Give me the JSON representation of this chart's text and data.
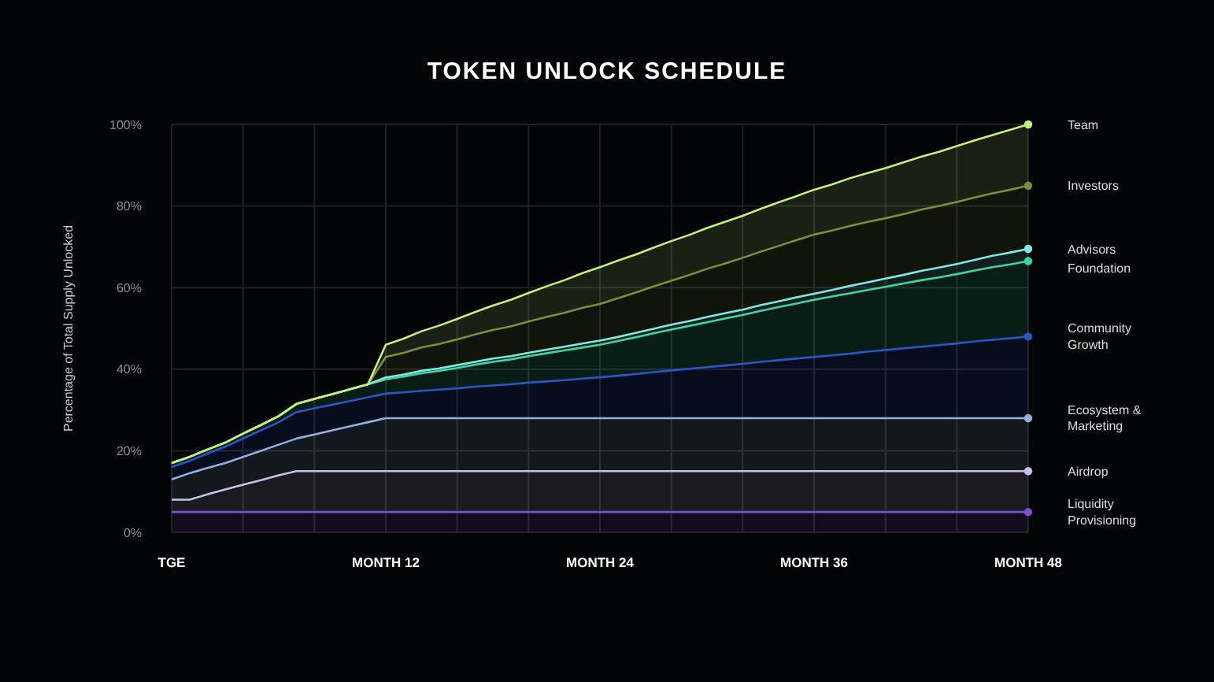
{
  "chart_data": {
    "type": "area",
    "title": "TOKEN UNLOCK SCHEDULE",
    "ylabel": "Percentage of Total Supply Unlocked",
    "stacked": true,
    "grid": true,
    "legend": false,
    "categories": [
      "TGE",
      null,
      null,
      null,
      null,
      null,
      null,
      null,
      null,
      null,
      null,
      null,
      "MONTH 12",
      null,
      null,
      null,
      null,
      null,
      null,
      null,
      null,
      null,
      null,
      null,
      "MONTH 24",
      null,
      null,
      null,
      null,
      null,
      null,
      null,
      null,
      null,
      null,
      null,
      "MONTH 36",
      null,
      null,
      null,
      null,
      null,
      null,
      null,
      null,
      null,
      null,
      null,
      "MONTH 48"
    ],
    "ylim": [
      0,
      100
    ],
    "yticks": [
      {
        "value": 0,
        "label": "0%"
      },
      {
        "value": 20,
        "label": "20%"
      },
      {
        "value": 40,
        "label": "40%"
      },
      {
        "value": 60,
        "label": "60%"
      },
      {
        "value": 80,
        "label": "80%"
      },
      {
        "value": 100,
        "label": "100%"
      }
    ],
    "series": [
      {
        "name": "Liquidity Provisioning",
        "color": "#7b4fd0",
        "values": [
          5,
          5,
          5,
          5,
          5,
          5,
          5,
          5,
          5,
          5,
          5,
          5,
          5,
          5,
          5,
          5,
          5,
          5,
          5,
          5,
          5,
          5,
          5,
          5,
          5,
          5,
          5,
          5,
          5,
          5,
          5,
          5,
          5,
          5,
          5,
          5,
          5,
          5,
          5,
          5,
          5,
          5,
          5,
          5,
          5,
          5,
          5,
          5,
          5
        ]
      },
      {
        "name": "Airdrop",
        "color": "#c8c0e8",
        "values": [
          3,
          3,
          4.3,
          5.5,
          6.7,
          7.8,
          9,
          10,
          10,
          10,
          10,
          10,
          10,
          10,
          10,
          10,
          10,
          10,
          10,
          10,
          10,
          10,
          10,
          10,
          10,
          10,
          10,
          10,
          10,
          10,
          10,
          10,
          10,
          10,
          10,
          10,
          10,
          10,
          10,
          10,
          10,
          10,
          10,
          10,
          10,
          10,
          10,
          10,
          10
        ]
      },
      {
        "name": "Ecosystem & Marketing",
        "color": "#8fb0e0",
        "values": [
          5,
          6.5,
          6.5,
          6.5,
          6.8,
          7.2,
          7.5,
          8,
          9,
          10,
          11,
          12,
          13,
          13,
          13,
          13,
          13,
          13,
          13,
          13,
          13,
          13,
          13,
          13,
          13,
          13,
          13,
          13,
          13,
          13,
          13,
          13,
          13,
          13,
          13,
          13,
          13,
          13,
          13,
          13,
          13,
          13,
          13,
          13,
          13,
          13,
          13,
          13,
          13
        ]
      },
      {
        "name": "Community Growth",
        "color": "#2a56c6",
        "values": [
          3,
          3,
          3.5,
          4,
          4.5,
          5,
          5.5,
          6.5,
          6.4,
          6.3,
          6.2,
          6.1,
          6,
          6.3,
          6.7,
          7,
          7.3,
          7.7,
          8,
          8.3,
          8.7,
          9,
          9.3,
          9.7,
          10,
          10.4,
          10.8,
          11.3,
          11.7,
          12.1,
          12.5,
          12.9,
          13.3,
          13.8,
          14.2,
          14.6,
          15,
          15.4,
          15.8,
          16.3,
          16.7,
          17.1,
          17.5,
          17.9,
          18.3,
          18.8,
          19.2,
          19.6,
          20
        ]
      },
      {
        "name": "Foundation",
        "color": "#3dd6a0",
        "values": [
          1,
          1,
          1,
          1,
          1.2,
          1.3,
          1.5,
          2,
          2.3,
          2.6,
          2.9,
          3.2,
          3.5,
          3.9,
          4.3,
          4.6,
          5,
          5.4,
          5.8,
          6.1,
          6.5,
          6.9,
          7.3,
          7.6,
          8,
          8.5,
          9,
          9.5,
          10,
          10.5,
          11,
          11.5,
          12,
          12.5,
          13,
          13.5,
          14,
          14.4,
          14.8,
          15.1,
          15.5,
          15.9,
          16.3,
          16.6,
          17,
          17.4,
          17.8,
          18.1,
          18.5
        ]
      },
      {
        "name": "Advisors",
        "color": "#7fe8e0",
        "values": [
          0,
          0,
          0,
          0,
          0,
          0,
          0,
          0,
          0,
          0,
          0,
          0,
          0.5,
          0.5,
          0.6,
          0.6,
          0.7,
          0.7,
          0.8,
          0.8,
          0.8,
          0.9,
          0.9,
          1,
          1,
          1,
          1.1,
          1.1,
          1.2,
          1.2,
          1.3,
          1.3,
          1.3,
          1.4,
          1.4,
          1.5,
          1.5,
          1.6,
          1.8,
          1.9,
          2,
          2.1,
          2.3,
          2.4,
          2.5,
          2.6,
          2.8,
          2.9,
          3
        ]
      },
      {
        "name": "Investors",
        "color": "#7a8f3a",
        "values": [
          0,
          0,
          0,
          0,
          0,
          0,
          0,
          0,
          0,
          0,
          0,
          0,
          5,
          5.3,
          5.7,
          6,
          6.3,
          6.7,
          7,
          7.3,
          7.7,
          8,
          8.3,
          8.7,
          9,
          9.5,
          9.9,
          10.4,
          10.8,
          11.3,
          11.8,
          12.2,
          12.7,
          13.1,
          13.6,
          14,
          14.5,
          14.6,
          14.7,
          14.8,
          14.8,
          14.9,
          15,
          15.1,
          15.2,
          15.3,
          15.3,
          15.4,
          15.5
        ]
      },
      {
        "name": "Team",
        "color": "#c5f07a",
        "values": [
          0,
          0,
          0,
          0,
          0,
          0,
          0,
          0,
          0,
          0,
          0,
          0,
          3,
          3.5,
          4,
          4.5,
          5,
          5.5,
          6,
          6.5,
          7,
          7.5,
          8,
          8.5,
          9,
          9.2,
          9.3,
          9.5,
          9.7,
          9.8,
          10,
          10.2,
          10.3,
          10.5,
          10.7,
          10.8,
          11,
          11.3,
          11.7,
          12,
          12.3,
          12.7,
          13,
          13.3,
          13.7,
          14,
          14.3,
          14.7,
          15
        ]
      }
    ]
  }
}
